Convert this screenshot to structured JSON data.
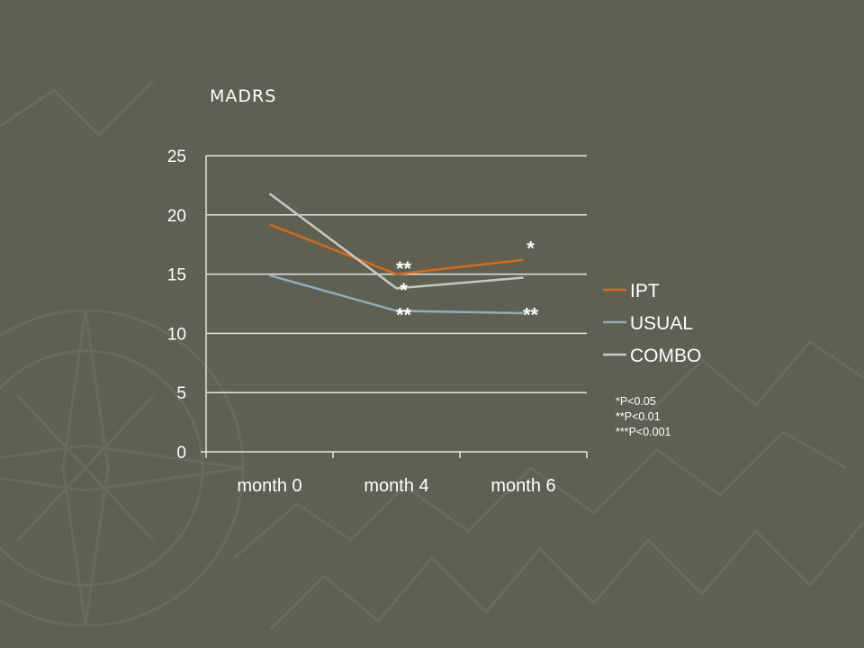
{
  "chart_data": {
    "type": "line",
    "title": "MADRS",
    "categories": [
      "month 0",
      "month 4",
      "month 6"
    ],
    "ylim": [
      0,
      25
    ],
    "yticks": [
      0,
      5,
      10,
      15,
      20,
      25
    ],
    "grid": true,
    "legend_position": "right",
    "series": [
      {
        "name": "IPT",
        "values": [
          19.2,
          15.0,
          16.2
        ],
        "color": "#e0670f"
      },
      {
        "name": "USUAL",
        "values": [
          14.9,
          11.9,
          11.7
        ],
        "color": "#8aaec0"
      },
      {
        "name": "COMBO",
        "values": [
          21.8,
          13.8,
          14.7
        ],
        "color": "#c8c8c4"
      }
    ],
    "annotations": [
      {
        "text": "**",
        "category": "month 4",
        "y": 15.8
      },
      {
        "text": "*",
        "category": "month 4",
        "y": 14.0
      },
      {
        "text": "**",
        "category": "month 4",
        "y": 11.9
      },
      {
        "text": "*",
        "category": "month 6",
        "y": 17.5
      },
      {
        "text": "**",
        "category": "month 6",
        "y": 11.9
      }
    ]
  },
  "notes": [
    "*P<0.05",
    "**P<0.01",
    "***P<0.001"
  ],
  "colors": {
    "background": "#5e6152",
    "grid": "#e6e6e6",
    "text": "#ffffff"
  }
}
